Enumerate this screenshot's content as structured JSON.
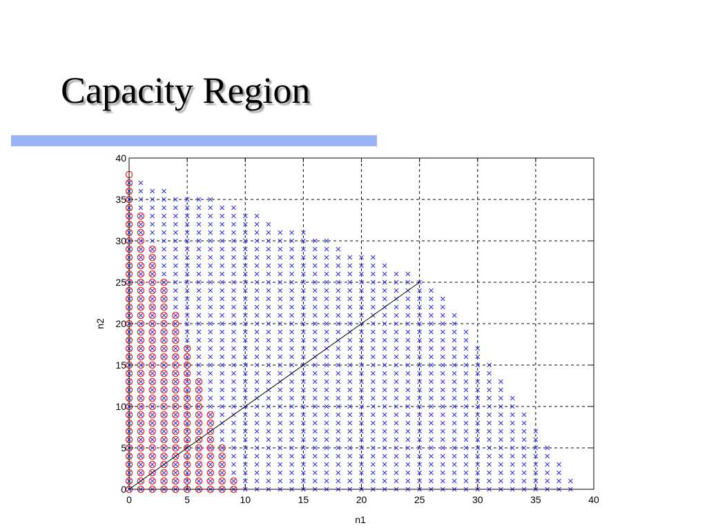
{
  "slide": {
    "title": "Capacity Region",
    "accent_color": "#99b3f5"
  },
  "chart_data": {
    "type": "scatter",
    "title": "",
    "xlabel": "n1",
    "ylabel": "n2",
    "xlim": [
      0,
      40
    ],
    "ylim": [
      0,
      40
    ],
    "xticks": [
      0,
      5,
      10,
      15,
      20,
      25,
      30,
      35,
      40
    ],
    "yticks": [
      0,
      5,
      10,
      15,
      20,
      25,
      30,
      35,
      40
    ],
    "grid": true,
    "grid_style": "dashed",
    "series": [
      {
        "marker": "x",
        "color": "#3030e0",
        "description": "integer lattice points, max n2 for each n1",
        "n1": [
          0,
          1,
          2,
          3,
          4,
          5,
          6,
          7,
          8,
          9,
          10,
          11,
          12,
          13,
          14,
          15,
          16,
          17,
          18,
          19,
          20,
          21,
          22,
          23,
          24,
          25,
          26,
          27,
          28,
          29,
          30,
          31,
          32,
          33,
          34,
          35,
          36,
          37,
          38
        ],
        "n2_max": [
          37,
          37,
          36,
          36,
          35,
          35,
          35,
          35,
          34,
          34,
          33,
          33,
          32,
          31,
          31,
          31,
          30,
          30,
          29,
          28,
          28,
          28,
          27,
          26,
          26,
          25,
          24,
          23,
          21,
          19,
          17,
          15,
          13,
          11,
          9,
          7,
          5,
          3,
          1
        ]
      },
      {
        "marker": "o",
        "color": "#e03030",
        "description": "integer lattice points, max n2 for each n1",
        "n1": [
          0,
          1,
          2,
          3,
          4,
          5,
          6,
          7,
          8,
          9
        ],
        "n2_max": [
          38,
          33,
          29,
          25,
          21,
          17,
          13,
          9,
          5,
          1
        ]
      },
      {
        "type": "line",
        "color": "#000000",
        "x": [
          0,
          25
        ],
        "y": [
          0,
          25
        ]
      }
    ]
  }
}
